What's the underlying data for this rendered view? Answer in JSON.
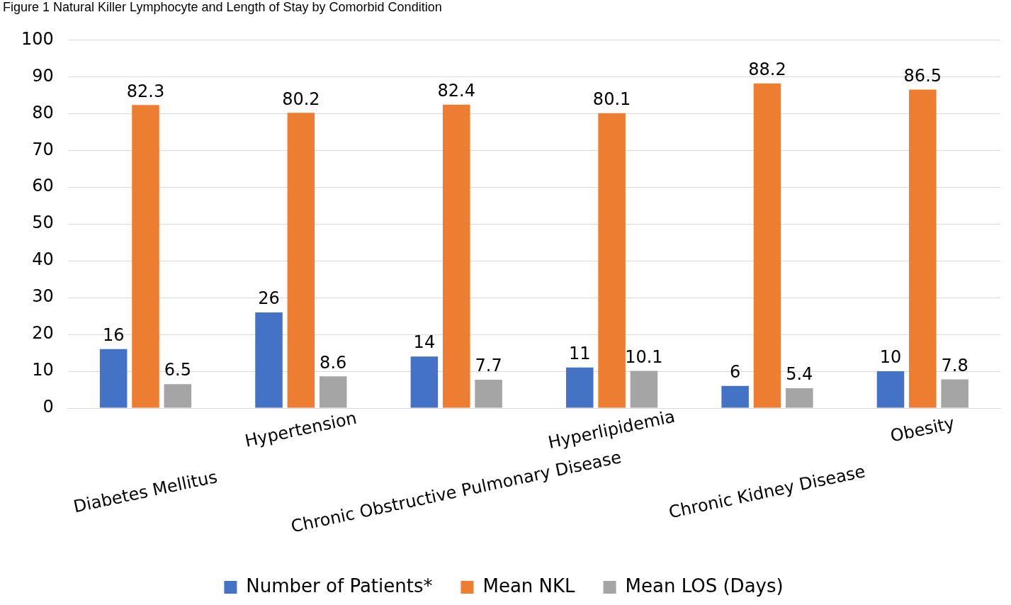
{
  "chart_data": {
    "type": "bar",
    "title": "Figure 1 Natural Killer Lymphocyte and Length of Stay by Comorbid Condition",
    "categories": [
      "Diabetes Mellitus",
      "Hypertension",
      "Chronic Obstructive Pulmonary Disease",
      "Hyperlipidemia",
      "Chronic Kidney Disease",
      "Obesity"
    ],
    "series": [
      {
        "name": "Number of Patients*",
        "color": "#4472c4",
        "values": [
          16,
          26,
          14,
          11,
          6,
          10
        ]
      },
      {
        "name": "Mean NKL",
        "color": "#ed7d31",
        "values": [
          82.3,
          80.2,
          82.4,
          80.1,
          88.2,
          86.5
        ]
      },
      {
        "name": "Mean LOS (Days)",
        "color": "#a5a5a5",
        "values": [
          6.5,
          8.6,
          7.7,
          10.1,
          5.4,
          7.8
        ]
      }
    ],
    "ylim": [
      0,
      100
    ],
    "yticks": [
      0,
      10,
      20,
      30,
      40,
      50,
      60,
      70,
      80,
      90,
      100
    ],
    "grid": "y",
    "legend": "bottom",
    "data_labels": true
  }
}
